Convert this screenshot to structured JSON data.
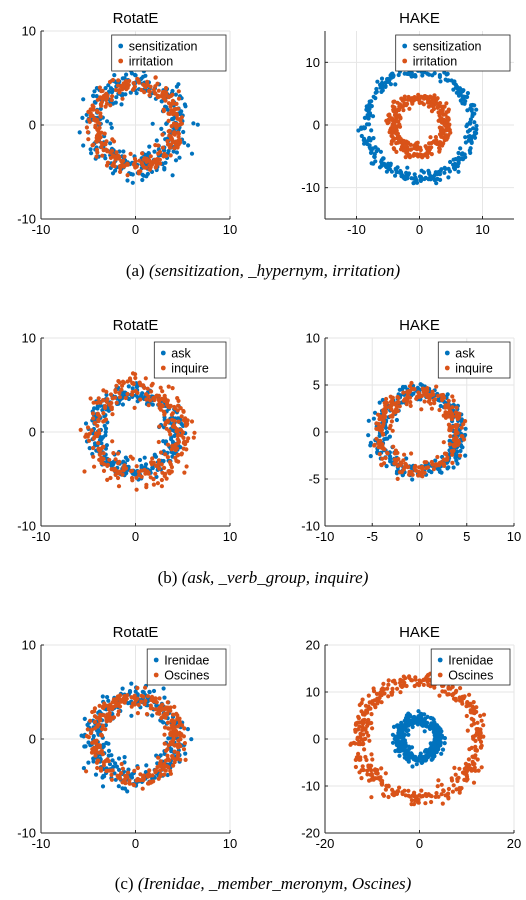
{
  "colors": {
    "series1": "#0072BD",
    "series2": "#D95319"
  },
  "captions": [
    {
      "label": "(a)",
      "text": "(sensitization, _hypernym, irritation)"
    },
    {
      "label": "(b)",
      "text": "(ask, _verb_group, inquire)"
    },
    {
      "label": "(c)",
      "text": "(Irenidae, _member_meronym, Oscines)"
    }
  ],
  "chart_data": [
    {
      "type": "scatter",
      "title": "RotatE",
      "xlim": [
        -10,
        10
      ],
      "ylim": [
        -10,
        10
      ],
      "xticks": [
        "-10",
        "0",
        "10"
      ],
      "yticks": [
        "-10",
        "0",
        "10"
      ],
      "grid": true,
      "legend": "top-right",
      "series": [
        {
          "name": "sensitization",
          "color": "#0072BD",
          "radius": 4.5,
          "spread": 1.4,
          "count": 300
        },
        {
          "name": "irritation",
          "color": "#D95319",
          "radius": 4.3,
          "spread": 0.9,
          "count": 300
        }
      ]
    },
    {
      "type": "scatter",
      "title": "HAKE",
      "xlim": [
        -15,
        15
      ],
      "ylim": [
        -15,
        15
      ],
      "xticks": [
        "-10",
        "0",
        "10"
      ],
      "yticks": [
        "-10",
        "0",
        "10"
      ],
      "grid": true,
      "legend": "top-right",
      "series": [
        {
          "name": "sensitization",
          "color": "#0072BD",
          "radius": 8.5,
          "spread": 0.9,
          "count": 320
        },
        {
          "name": "irritation",
          "color": "#D95319",
          "radius": 4.2,
          "spread": 1.1,
          "count": 300
        }
      ]
    },
    {
      "type": "scatter",
      "title": "RotatE",
      "xlim": [
        -10,
        10
      ],
      "ylim": [
        -10,
        10
      ],
      "xticks": [
        "-10",
        "0",
        "10"
      ],
      "yticks": [
        "-10",
        "0",
        "10"
      ],
      "grid": true,
      "legend": "top-right",
      "series": [
        {
          "name": "ask",
          "color": "#0072BD",
          "radius": 4.2,
          "spread": 0.9,
          "count": 300
        },
        {
          "name": "inquire",
          "color": "#D95319",
          "radius": 4.6,
          "spread": 1.5,
          "count": 300
        }
      ]
    },
    {
      "type": "scatter",
      "title": "HAKE",
      "xlim": [
        -10,
        10
      ],
      "ylim": [
        -10,
        10
      ],
      "xticks": [
        "-10",
        "-5",
        "0",
        "5",
        "10"
      ],
      "yticks": [
        "-10",
        "-5",
        "0",
        "5",
        "10"
      ],
      "grid": true,
      "legend": "top-right",
      "series": [
        {
          "name": "ask",
          "color": "#0072BD",
          "radius": 4.2,
          "spread": 0.9,
          "count": 300
        },
        {
          "name": "inquire",
          "color": "#D95319",
          "radius": 4.1,
          "spread": 0.9,
          "count": 300
        }
      ]
    },
    {
      "type": "scatter",
      "title": "RotatE",
      "xlim": [
        -10,
        10
      ],
      "ylim": [
        -10,
        10
      ],
      "xticks": [
        "-10",
        "0",
        "10"
      ],
      "yticks": [
        "-10",
        "0",
        "10"
      ],
      "grid": true,
      "legend": "top-right",
      "series": [
        {
          "name": "Irenidae",
          "color": "#0072BD",
          "radius": 4.4,
          "spread": 1.3,
          "count": 300
        },
        {
          "name": "Oscines",
          "color": "#D95319",
          "radius": 4.3,
          "spread": 1.0,
          "count": 320
        }
      ]
    },
    {
      "type": "scatter",
      "title": "HAKE",
      "xlim": [
        -20,
        20
      ],
      "ylim": [
        -20,
        20
      ],
      "xticks": [
        "-20",
        "0",
        "20"
      ],
      "yticks": [
        "-20",
        "-10",
        "0",
        "10",
        "20"
      ],
      "grid": true,
      "legend": "top-right",
      "series": [
        {
          "name": "Oscines",
          "color": "#D95319",
          "radius": 12.5,
          "spread": 1.7,
          "count": 420
        },
        {
          "name": "Irenidae",
          "color": "#0072BD",
          "radius": 4.2,
          "spread": 1.3,
          "count": 320
        }
      ]
    }
  ]
}
